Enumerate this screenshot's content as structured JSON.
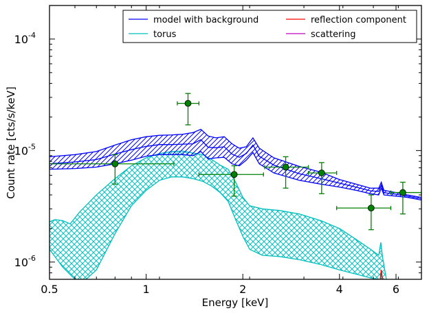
{
  "chart_data": {
    "type": "line",
    "xlabel": "Energy [keV]",
    "ylabel": "Count rate [cts/s/keV]",
    "x_scale": "log",
    "y_scale": "log",
    "xlim": [
      0.5,
      7.2
    ],
    "ylim": [
      7e-07,
      0.0002
    ],
    "x_ticks": [
      {
        "value": 0.5,
        "label": "0.5"
      },
      {
        "value": 1,
        "label": "1"
      },
      {
        "value": 2,
        "label": "2"
      },
      {
        "value": 4,
        "label": "4"
      },
      {
        "value": 6,
        "label": "6"
      }
    ],
    "y_ticks": [
      {
        "value": 1e-06,
        "base": "10",
        "exp": "-6"
      },
      {
        "value": 1e-05,
        "base": "10",
        "exp": "-5"
      },
      {
        "value": 0.0001,
        "base": "10",
        "exp": "-4"
      }
    ],
    "grid": false,
    "legend_position": "top-right",
    "legend": [
      {
        "name": "model with background",
        "color": "#0000ff"
      },
      {
        "name": "torus",
        "color": "#00bfbf"
      },
      {
        "name": "reflection component",
        "color": "#ff0000"
      },
      {
        "name": "scattering",
        "color": "#bf00bf"
      }
    ],
    "series": [
      {
        "name": "model with background",
        "color": "#0000ff",
        "band_upper": [
          [
            0.5,
            8.8e-06
          ],
          [
            0.6,
            9.2e-06
          ],
          [
            0.7,
            9.8e-06
          ],
          [
            0.8,
            1.12e-05
          ],
          [
            0.9,
            1.25e-05
          ],
          [
            1.0,
            1.33e-05
          ],
          [
            1.1,
            1.37e-05
          ],
          [
            1.2,
            1.38e-05
          ],
          [
            1.3,
            1.4e-05
          ],
          [
            1.4,
            1.45e-05
          ],
          [
            1.48,
            1.55e-05
          ],
          [
            1.56,
            1.35e-05
          ],
          [
            1.65,
            1.3e-05
          ],
          [
            1.75,
            1.33e-05
          ],
          [
            1.85,
            1.15e-05
          ],
          [
            1.95,
            1.05e-05
          ],
          [
            2.05,
            1.08e-05
          ],
          [
            2.15,
            1.3e-05
          ],
          [
            2.25,
            1.05e-05
          ],
          [
            2.5,
            8.6e-06
          ],
          [
            3.0,
            7.2e-06
          ],
          [
            3.5,
            6.4e-06
          ],
          [
            4.0,
            5.5e-06
          ],
          [
            4.5,
            5e-06
          ],
          [
            5.0,
            4.6e-06
          ],
          [
            5.3,
            4.6e-06
          ],
          [
            5.4,
            5.2e-06
          ],
          [
            5.5,
            4.4e-06
          ],
          [
            6.0,
            4.2e-06
          ],
          [
            6.5,
            4e-06
          ],
          [
            7.2,
            3.8e-06
          ]
        ],
        "band_lower": [
          [
            0.5,
            6.8e-06
          ],
          [
            0.6,
            6.9e-06
          ],
          [
            0.7,
            7.1e-06
          ],
          [
            0.8,
            7.6e-06
          ],
          [
            0.9,
            8.2e-06
          ],
          [
            1.0,
            8.9e-06
          ],
          [
            1.1,
            9.2e-06
          ],
          [
            1.2,
            9.2e-06
          ],
          [
            1.3,
            9.2e-06
          ],
          [
            1.4,
            9e-06
          ],
          [
            1.48,
            9.8e-06
          ],
          [
            1.56,
            8.4e-06
          ],
          [
            1.65,
            8.6e-06
          ],
          [
            1.75,
            8.7e-06
          ],
          [
            1.85,
            7.6e-06
          ],
          [
            1.95,
            7.3e-06
          ],
          [
            2.05,
            8.2e-06
          ],
          [
            2.15,
            9.6e-06
          ],
          [
            2.25,
            7.6e-06
          ],
          [
            2.5,
            6.3e-06
          ],
          [
            3.0,
            5.4e-06
          ],
          [
            3.5,
            5e-06
          ],
          [
            4.0,
            4.7e-06
          ],
          [
            4.5,
            4.4e-06
          ],
          [
            5.0,
            4.1e-06
          ],
          [
            5.3,
            4e-06
          ],
          [
            5.4,
            4.6e-06
          ],
          [
            5.5,
            4e-06
          ],
          [
            6.0,
            3.9e-06
          ],
          [
            6.5,
            3.8e-06
          ],
          [
            7.2,
            3.6e-06
          ]
        ],
        "mid": [
          [
            0.5,
            7.6e-06
          ],
          [
            0.6,
            7.9e-06
          ],
          [
            0.7,
            8.3e-06
          ],
          [
            0.8,
            9.3e-06
          ],
          [
            0.9,
            1.02e-05
          ],
          [
            1.0,
            1.09e-05
          ],
          [
            1.1,
            1.13e-05
          ],
          [
            1.2,
            1.13e-05
          ],
          [
            1.3,
            1.14e-05
          ],
          [
            1.4,
            1.15e-05
          ],
          [
            1.48,
            1.25e-05
          ],
          [
            1.56,
            1.07e-05
          ],
          [
            1.65,
            1.06e-05
          ],
          [
            1.75,
            1.08e-05
          ],
          [
            1.85,
            9.3e-06
          ],
          [
            1.95,
            8.7e-06
          ],
          [
            2.05,
            9.4e-06
          ],
          [
            2.15,
            1.12e-05
          ],
          [
            2.25,
            8.9e-06
          ],
          [
            2.5,
            7.4e-06
          ],
          [
            3.0,
            6.2e-06
          ],
          [
            3.5,
            5.6e-06
          ],
          [
            4.0,
            5.1e-06
          ],
          [
            4.5,
            4.7e-06
          ],
          [
            5.0,
            4.35e-06
          ],
          [
            5.3,
            4.3e-06
          ],
          [
            5.4,
            4.9e-06
          ],
          [
            5.5,
            4.2e-06
          ],
          [
            6.0,
            4.05e-06
          ],
          [
            6.5,
            3.9e-06
          ],
          [
            7.2,
            3.7e-06
          ]
        ]
      },
      {
        "name": "torus",
        "color": "#00bfbf",
        "band_upper": [
          [
            0.5,
            2.3e-06
          ],
          [
            0.52,
            2.4e-06
          ],
          [
            0.55,
            2.35e-06
          ],
          [
            0.58,
            2.2e-06
          ],
          [
            0.62,
            2.8e-06
          ],
          [
            0.7,
            4e-06
          ],
          [
            0.8,
            5.6e-06
          ],
          [
            0.9,
            7.3e-06
          ],
          [
            1.0,
            8.6e-06
          ],
          [
            1.1,
            9.4e-06
          ],
          [
            1.2,
            9.8e-06
          ],
          [
            1.3,
            9.9e-06
          ],
          [
            1.4,
            9.5e-06
          ],
          [
            1.5,
            9.2e-06
          ],
          [
            1.6,
            8.3e-06
          ],
          [
            1.7,
            7.4e-06
          ],
          [
            1.8,
            6.8e-06
          ],
          [
            1.9,
            5.2e-06
          ],
          [
            2.0,
            3.8e-06
          ],
          [
            2.1,
            3.2e-06
          ],
          [
            2.3,
            3e-06
          ],
          [
            2.6,
            2.9e-06
          ],
          [
            3.0,
            2.7e-06
          ],
          [
            3.5,
            2.35e-06
          ],
          [
            4.0,
            2e-06
          ],
          [
            4.5,
            1.6e-06
          ],
          [
            5.0,
            1.3e-06
          ],
          [
            5.3,
            1.15e-06
          ],
          [
            5.38,
            1.5e-06
          ],
          [
            5.45,
            1.1e-06
          ],
          [
            5.6,
            7e-07
          ]
        ],
        "band_lower": [
          [
            0.5,
            1.3e-06
          ],
          [
            0.55,
            9e-07
          ],
          [
            0.6,
            7e-07
          ],
          [
            0.65,
            7e-07
          ],
          [
            0.7,
            8.5e-07
          ],
          [
            0.8,
            1.8e-06
          ],
          [
            0.9,
            3.2e-06
          ],
          [
            1.0,
            4.4e-06
          ],
          [
            1.1,
            5.4e-06
          ],
          [
            1.2,
            5.8e-06
          ],
          [
            1.3,
            5.8e-06
          ],
          [
            1.4,
            5.6e-06
          ],
          [
            1.5,
            5.3e-06
          ],
          [
            1.6,
            4.8e-06
          ],
          [
            1.7,
            4.2e-06
          ],
          [
            1.8,
            3.5e-06
          ],
          [
            1.9,
            2.4e-06
          ],
          [
            2.0,
            1.7e-06
          ],
          [
            2.1,
            1.3e-06
          ],
          [
            2.3,
            1.15e-06
          ],
          [
            2.6,
            1.12e-06
          ],
          [
            3.0,
            1.05e-06
          ],
          [
            3.5,
            9.5e-07
          ],
          [
            4.0,
            8.5e-07
          ],
          [
            4.5,
            7.8e-07
          ],
          [
            5.0,
            7.2e-07
          ],
          [
            5.3,
            7e-07
          ]
        ]
      },
      {
        "name": "reflection component",
        "color": "#ff0000",
        "line": [
          [
            5.36,
            7e-07
          ],
          [
            5.4,
            8.5e-07
          ],
          [
            5.44,
            7e-07
          ]
        ]
      }
    ],
    "data_points": [
      {
        "x": 0.8,
        "xlo": 0.5,
        "xhi": 1.22,
        "y": 7.6e-06,
        "ylo": 5e-06,
        "yhi": 9.2e-06
      },
      {
        "x": 1.35,
        "xlo": 1.25,
        "xhi": 1.46,
        "y": 2.65e-05,
        "ylo": 1.7e-05,
        "yhi": 3.25e-05
      },
      {
        "x": 1.88,
        "xlo": 1.46,
        "xhi": 2.32,
        "y": 6.1e-06,
        "ylo": 3.9e-06,
        "yhi": 7.3e-06
      },
      {
        "x": 2.72,
        "xlo": 2.34,
        "xhi": 3.2,
        "y": 7.1e-06,
        "ylo": 4.6e-06,
        "yhi": 8.8e-06
      },
      {
        "x": 3.52,
        "xlo": 3.2,
        "xhi": 3.92,
        "y": 6.3e-06,
        "ylo": 4.1e-06,
        "yhi": 7.8e-06
      },
      {
        "x": 5.02,
        "xlo": 3.92,
        "xhi": 5.78,
        "y": 3.05e-06,
        "ylo": 1.95e-06,
        "yhi": 4e-06
      },
      {
        "x": 6.3,
        "xlo": 5.78,
        "xhi": 7.2,
        "y": 4.2e-06,
        "ylo": 2.7e-06,
        "yhi": 5.2e-06
      }
    ]
  }
}
